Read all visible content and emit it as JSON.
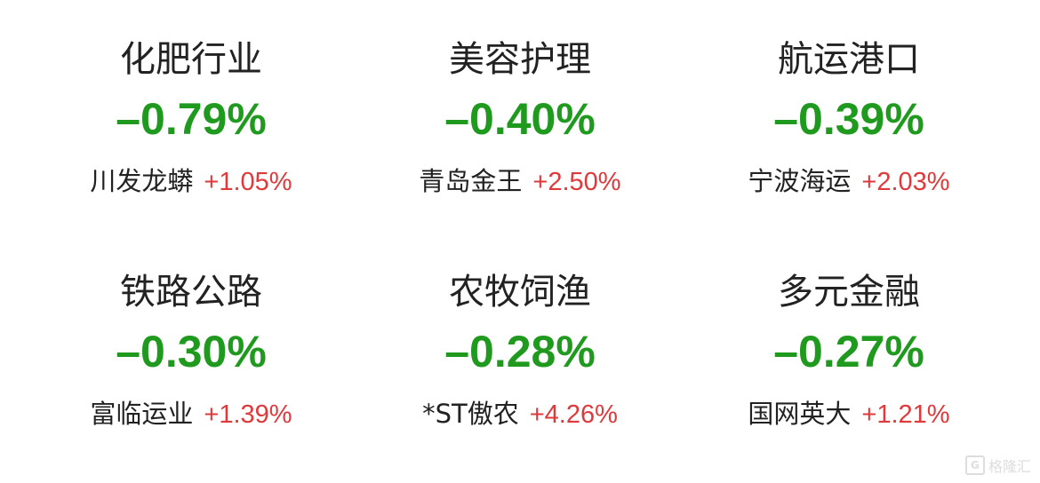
{
  "sectors": [
    {
      "name": "化肥行业",
      "change": "–0.79%",
      "top_stock": "川发龙蟒",
      "top_change": "+1.05%"
    },
    {
      "name": "美容护理",
      "change": "–0.40%",
      "top_stock": "青岛金王",
      "top_change": "+2.50%"
    },
    {
      "name": "航运港口",
      "change": "–0.39%",
      "top_stock": "宁波海运",
      "top_change": "+2.03%"
    },
    {
      "name": "铁路公路",
      "change": "–0.30%",
      "top_stock": "富临运业",
      "top_change": "+1.39%"
    },
    {
      "name": "农牧饲渔",
      "change": "–0.28%",
      "top_stock": "*ST傲农",
      "top_change": "+4.26%"
    },
    {
      "name": "多元金融",
      "change": "–0.27%",
      "top_stock": "国网英大",
      "top_change": "+1.21%"
    }
  ],
  "watermark": {
    "text": "格隆汇",
    "icon": "gelonghui-logo-icon"
  },
  "colors": {
    "down": "#1f9a1f",
    "up": "#e0393b",
    "text": "#222222"
  }
}
